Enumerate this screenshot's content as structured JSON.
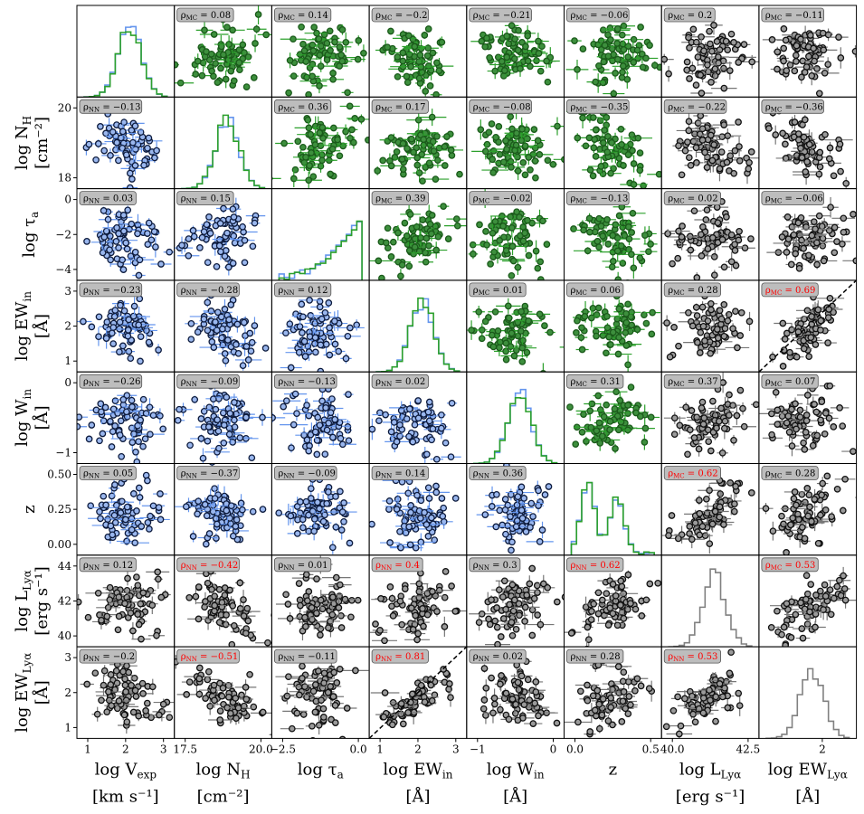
{
  "chart_data": {
    "type": "scatter",
    "title": "",
    "variables": [
      {
        "key": "vexp",
        "label": "log V",
        "sub": "exp",
        "unit": "[km s⁻¹]",
        "xticks": [
          "1",
          "2",
          "3"
        ],
        "yticks": []
      },
      {
        "key": "nh",
        "label": "log N",
        "sub": "H",
        "unit": "[cm⁻²]",
        "xticks": [
          "17.5",
          "20.0"
        ],
        "yticks": [
          "18",
          "20"
        ]
      },
      {
        "key": "tau",
        "label": "log τ",
        "sub": "a",
        "unit": "",
        "xticks": [
          "−2.5",
          "0.0"
        ],
        "yticks": [
          "−4",
          "−2",
          "0"
        ]
      },
      {
        "key": "ewin",
        "label": "log EW",
        "sub": "in",
        "unit": "[Å]",
        "xticks": [
          "1",
          "2",
          "3"
        ],
        "yticks": [
          "1",
          "2",
          "3"
        ]
      },
      {
        "key": "win",
        "label": "log W",
        "sub": "in",
        "unit": "[Å]",
        "xticks": [
          "−1",
          "0"
        ],
        "yticks": [
          "−1",
          "0"
        ]
      },
      {
        "key": "z",
        "label": "z",
        "sub": "",
        "unit": "",
        "xticks": [
          "0.0",
          "0.5"
        ],
        "yticks": [
          "0.00",
          "0.25",
          "0.50"
        ]
      },
      {
        "key": "llya",
        "label": "log L",
        "sub": "Lyα",
        "unit": "[erg s⁻¹]",
        "xticks": [
          "40.0",
          "42.5"
        ],
        "yticks": [
          "40",
          "42",
          "44"
        ]
      },
      {
        "key": "ewlya",
        "label": "log EW",
        "sub": "Lyα",
        "unit": "[Å]",
        "xticks": [
          "2"
        ],
        "yticks": [
          "1",
          "2",
          "3"
        ]
      }
    ],
    "correlations": [
      [
        null,
        "0.08",
        "0.14",
        "−0.2",
        "−0.21",
        "−0.06",
        "0.2",
        "−0.11"
      ],
      [
        "−0.13",
        null,
        "0.36",
        "0.17",
        "−0.08",
        "−0.35",
        "−0.22",
        "−0.36"
      ],
      [
        "0.03",
        "0.15",
        null,
        "0.39",
        "−0.02",
        "−0.13",
        "0.02",
        "−0.06"
      ],
      [
        "−0.23",
        "−0.28",
        "0.12",
        null,
        "0.01",
        "0.06",
        "0.28",
        "0.69"
      ],
      [
        "−0.26",
        "−0.09",
        "−0.13",
        "0.02",
        null,
        "0.31",
        "0.37",
        "0.07"
      ],
      [
        "0.05",
        "−0.37",
        "−0.09",
        "0.14",
        "0.36",
        null,
        "0.62",
        "0.28"
      ],
      [
        "0.12",
        "−0.42",
        "0.01",
        "0.4",
        "0.3",
        "0.62",
        null,
        "0.53"
      ],
      [
        "−0.2",
        "−0.51",
        "−0.11",
        "0.81",
        "0.02",
        "0.28",
        "0.53",
        null
      ]
    ],
    "significant": [
      [
        false,
        false,
        false,
        false,
        false,
        false,
        false,
        false
      ],
      [
        false,
        false,
        false,
        false,
        false,
        false,
        false,
        false
      ],
      [
        false,
        false,
        false,
        false,
        false,
        false,
        false,
        false
      ],
      [
        false,
        false,
        false,
        false,
        false,
        false,
        false,
        true
      ],
      [
        false,
        false,
        false,
        false,
        false,
        false,
        false,
        false
      ],
      [
        false,
        false,
        false,
        false,
        false,
        false,
        true,
        false
      ],
      [
        false,
        true,
        false,
        true,
        false,
        true,
        false,
        true
      ],
      [
        false,
        true,
        false,
        true,
        false,
        false,
        true,
        false
      ]
    ],
    "rho_labels": {
      "upper": "MC",
      "lower": "NN"
    },
    "one_to_one_lines": [
      [
        3,
        7
      ],
      [
        7,
        3
      ]
    ],
    "colors": {
      "mc_edge": "#1a5a1a",
      "mc_face": "#3d8f3d",
      "mc_err": "#2ca02c",
      "nn_edge": "#0d1b3d",
      "nn_face": "#9ab7ee",
      "nn_err": "#6495ed",
      "obs_edge": "#111111",
      "obs_face": "#9a9a9a",
      "obs_err": "#777777",
      "hist_mc": "#2ca02c",
      "hist_nn": "#6495ed",
      "hist_obs": "#808080",
      "label_bg": "#bdbdbd",
      "significant_text": "#ff0000"
    },
    "grid": false
  }
}
